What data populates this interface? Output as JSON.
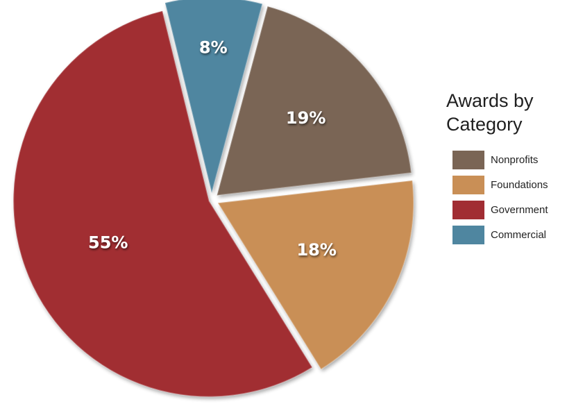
{
  "chart_data": {
    "type": "pie",
    "title": "Awards by Category",
    "categories": [
      "Nonprofits",
      "Foundations",
      "Government",
      "Commercial"
    ],
    "values": [
      19,
      18,
      55,
      8
    ],
    "labels": [
      "19%",
      "18%",
      "55%",
      "8%"
    ],
    "colors": [
      "#7a6555",
      "#c98f56",
      "#a12d33",
      "#4f86a0"
    ],
    "legend_position": "right"
  },
  "legend": {
    "title_line1": "Awards by",
    "title_line2": "Category",
    "items": [
      {
        "label": "Nonprofits",
        "color": "#7a6555"
      },
      {
        "label": "Foundations",
        "color": "#c98f56"
      },
      {
        "label": "Government",
        "color": "#a12d33"
      },
      {
        "label": "Commercial",
        "color": "#4f86a0"
      }
    ]
  }
}
